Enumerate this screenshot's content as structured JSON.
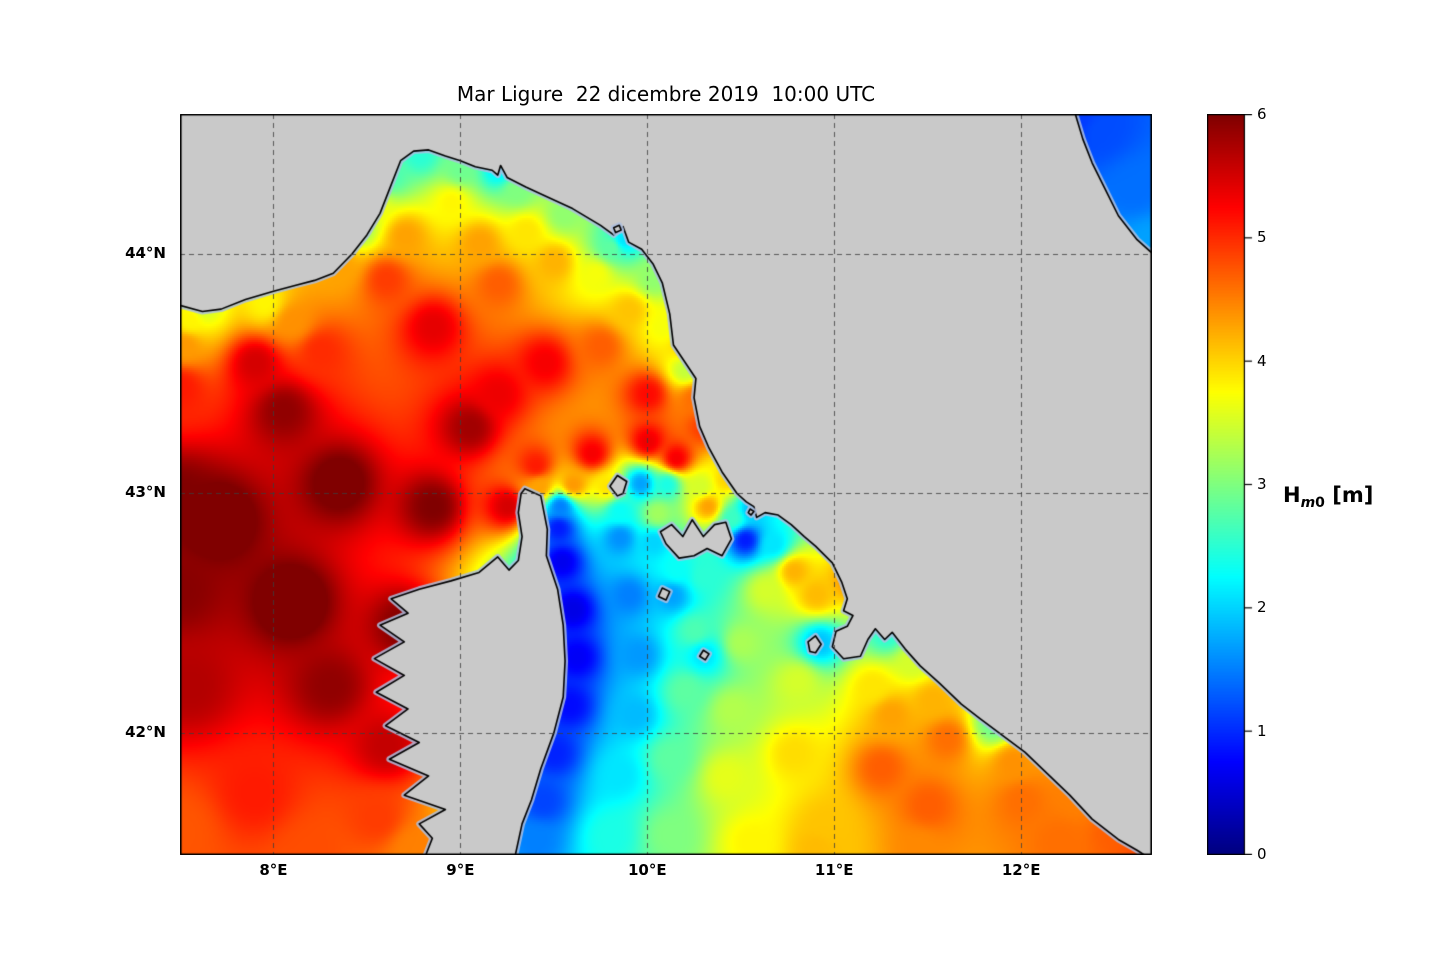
{
  "title": "Mar Ligure  22 dicembre 2019  10:00 UTC",
  "axes": {
    "lon_min": 7.5,
    "lon_max": 12.7,
    "lat_min": 41.49,
    "lat_max": 44.585,
    "x_ticks": [
      {
        "label": "8°E",
        "lon": 8
      },
      {
        "label": "9°E",
        "lon": 9
      },
      {
        "label": "10°E",
        "lon": 10
      },
      {
        "label": "11°E",
        "lon": 11
      },
      {
        "label": "12°E",
        "lon": 12
      }
    ],
    "y_ticks": [
      {
        "label": "44°N",
        "lat": 44
      },
      {
        "label": "43°N",
        "lat": 43
      },
      {
        "label": "42°N",
        "lat": 42
      }
    ]
  },
  "colorbar": {
    "min": 0,
    "max": 6,
    "ticks": [
      {
        "label": "6",
        "value": 6
      },
      {
        "label": "5",
        "value": 5
      },
      {
        "label": "4",
        "value": 4
      },
      {
        "label": "3",
        "value": 3
      },
      {
        "label": "2",
        "value": 2
      },
      {
        "label": "1",
        "value": 1
      },
      {
        "label": "0",
        "value": 0
      }
    ],
    "label_prefix": "H",
    "label_sub_italic": "m",
    "label_sub_normal": "0",
    "label_suffix": " [m]"
  },
  "colors": {
    "land": "#c9c9c9",
    "coast": "#000000",
    "nodata_halo": "#aebfe0",
    "grid": "#3c3c3c",
    "frame": "#000000",
    "background": "#ffffff"
  },
  "chart_data": {
    "type": "heatmap",
    "title": "Mar Ligure  22 dicembre 2019  10:00 UTC",
    "field": "significant wave height Hm0",
    "units": "m",
    "colormap": "jet",
    "value_range": [
      0,
      6
    ],
    "lon_range": [
      7.5,
      12.7
    ],
    "lat_range": [
      41.49,
      44.585
    ],
    "grid": "dashed",
    "points": [
      [
        7.7,
        42.9,
        6.3
      ],
      [
        8.1,
        42.55,
        6.3
      ],
      [
        8.35,
        43.05,
        6.15
      ],
      [
        8.7,
        42.45,
        6.0
      ],
      [
        8.85,
        42.95,
        6.0
      ],
      [
        8.05,
        43.35,
        5.9
      ],
      [
        9.05,
        43.28,
        5.8
      ],
      [
        7.55,
        42.2,
        5.7
      ],
      [
        8.6,
        41.95,
        5.6
      ],
      [
        9.25,
        42.95,
        5.5
      ],
      [
        9.2,
        43.42,
        5.35
      ],
      [
        7.5,
        43.0,
        6.0
      ],
      [
        8.3,
        42.2,
        5.9
      ],
      [
        9.0,
        42.2,
        5.3
      ],
      [
        7.9,
        41.75,
        5.1
      ],
      [
        8.55,
        41.65,
        4.9
      ],
      [
        7.5,
        41.6,
        4.75
      ],
      [
        8.2,
        41.5,
        4.8
      ],
      [
        8.75,
        41.52,
        4.5
      ],
      [
        7.5,
        42.6,
        5.95
      ],
      [
        7.5,
        43.45,
        5.1
      ],
      [
        7.52,
        43.62,
        4.35
      ],
      [
        7.55,
        43.73,
        3.8
      ],
      [
        7.62,
        43.78,
        3.5
      ],
      [
        7.9,
        43.55,
        5.5
      ],
      [
        7.95,
        43.8,
        3.8
      ],
      [
        8.1,
        43.72,
        4.4
      ],
      [
        8.25,
        43.6,
        5.0
      ],
      [
        8.45,
        44.12,
        3.1
      ],
      [
        8.62,
        44.33,
        2.7
      ],
      [
        8.78,
        44.42,
        2.5
      ],
      [
        9.0,
        44.36,
        2.9
      ],
      [
        9.2,
        44.355,
        2.2
      ],
      [
        9.3,
        44.27,
        3.0
      ],
      [
        9.55,
        44.17,
        3.1
      ],
      [
        9.8,
        44.03,
        2.8
      ],
      [
        9.87,
        44.065,
        2.1
      ],
      [
        10.03,
        43.9,
        3.1
      ],
      [
        10.2,
        43.52,
        3.4
      ],
      [
        8.52,
        44.2,
        3.7
      ],
      [
        8.95,
        44.22,
        3.8
      ],
      [
        9.35,
        44.1,
        3.9
      ],
      [
        9.72,
        43.92,
        3.7
      ],
      [
        10.08,
        43.7,
        3.7
      ],
      [
        8.35,
        43.95,
        4.3
      ],
      [
        8.7,
        44.08,
        4.3
      ],
      [
        9.1,
        44.05,
        4.3
      ],
      [
        9.5,
        43.97,
        4.2
      ],
      [
        9.9,
        43.77,
        4.1
      ],
      [
        10.2,
        43.62,
        4.0
      ],
      [
        8.6,
        43.9,
        4.9
      ],
      [
        9.2,
        43.88,
        4.7
      ],
      [
        9.75,
        43.62,
        4.7
      ],
      [
        10.25,
        43.4,
        4.6
      ],
      [
        8.85,
        43.7,
        5.4
      ],
      [
        9.45,
        43.55,
        5.3
      ],
      [
        10.0,
        43.42,
        5.2
      ],
      [
        10.3,
        43.28,
        4.9
      ],
      [
        10.15,
        43.15,
        5.3
      ],
      [
        9.4,
        43.12,
        5.1
      ],
      [
        9.7,
        43.17,
        5.3
      ],
      [
        10.0,
        43.22,
        5.35
      ],
      [
        9.42,
        43.03,
        4.3
      ],
      [
        9.6,
        43.04,
        4.35
      ],
      [
        9.78,
        43.03,
        3.9
      ],
      [
        9.96,
        43.045,
        1.7
      ],
      [
        10.1,
        43.04,
        2.4
      ],
      [
        10.28,
        43.03,
        3.5
      ],
      [
        10.42,
        43.06,
        4.0
      ],
      [
        9.85,
        42.93,
        2.3
      ],
      [
        10.05,
        42.92,
        3.2
      ],
      [
        10.32,
        42.95,
        4.3
      ],
      [
        10.55,
        42.94,
        1.9
      ],
      [
        10.45,
        42.9,
        2.6
      ],
      [
        9.53,
        42.95,
        1.5
      ],
      [
        9.52,
        42.86,
        0.9
      ],
      [
        9.54,
        42.72,
        0.65
      ],
      [
        9.6,
        42.52,
        0.6
      ],
      [
        9.62,
        42.32,
        0.7
      ],
      [
        9.58,
        42.12,
        0.8
      ],
      [
        9.5,
        41.92,
        0.95
      ],
      [
        9.44,
        41.72,
        1.15
      ],
      [
        9.4,
        41.55,
        1.5
      ],
      [
        9.85,
        42.82,
        1.6
      ],
      [
        9.9,
        42.58,
        1.5
      ],
      [
        9.95,
        42.33,
        1.65
      ],
      [
        9.93,
        42.08,
        1.85
      ],
      [
        9.85,
        41.83,
        2.1
      ],
      [
        9.8,
        41.58,
        2.4
      ],
      [
        10.15,
        42.68,
        2.3
      ],
      [
        10.25,
        42.43,
        2.7
      ],
      [
        10.2,
        42.18,
        2.8
      ],
      [
        10.12,
        41.9,
        2.8
      ],
      [
        10.12,
        41.58,
        3.0
      ],
      [
        10.5,
        42.38,
        3.25
      ],
      [
        10.45,
        42.1,
        3.3
      ],
      [
        10.42,
        41.82,
        3.6
      ],
      [
        10.55,
        41.55,
        3.8
      ],
      [
        10.8,
        42.22,
        3.5
      ],
      [
        10.78,
        41.92,
        3.95
      ],
      [
        10.95,
        41.62,
        4.1
      ],
      [
        10.03,
        42.8,
        2.0
      ],
      [
        10.52,
        42.81,
        0.9
      ],
      [
        10.67,
        42.79,
        2.1
      ],
      [
        10.3,
        42.66,
        2.5
      ],
      [
        10.13,
        42.58,
        1.7
      ],
      [
        10.3,
        42.33,
        2.1
      ],
      [
        10.63,
        42.6,
        3.5
      ],
      [
        10.78,
        42.68,
        4.2
      ],
      [
        10.9,
        42.58,
        4.15
      ],
      [
        11.08,
        42.64,
        4.35
      ],
      [
        10.92,
        42.38,
        1.9
      ],
      [
        11.28,
        42.42,
        2.5
      ],
      [
        11.42,
        42.3,
        3.5
      ],
      [
        11.2,
        42.2,
        3.9
      ],
      [
        11.3,
        42.08,
        4.3
      ],
      [
        11.25,
        41.86,
        4.7
      ],
      [
        11.6,
        41.98,
        4.6
      ],
      [
        11.52,
        42.14,
        4.2
      ],
      [
        11.85,
        42.04,
        2.9
      ],
      [
        11.95,
        41.88,
        4.4
      ],
      [
        12.0,
        41.72,
        4.6
      ],
      [
        12.3,
        41.73,
        4.5
      ],
      [
        12.5,
        41.6,
        4.7
      ],
      [
        12.65,
        41.52,
        4.8
      ],
      [
        11.45,
        41.52,
        4.45
      ],
      [
        10.9,
        41.52,
        4.15
      ],
      [
        12.2,
        41.55,
        4.6
      ],
      [
        11.5,
        41.7,
        4.7
      ],
      [
        12.42,
        44.52,
        1.2
      ],
      [
        12.6,
        44.28,
        1.4
      ],
      [
        12.69,
        44.04,
        1.7
      ],
      [
        12.3,
        44.57,
        1.1
      ]
    ],
    "land": {
      "mainland": [
        [
          7.48,
          43.79
        ],
        [
          7.62,
          43.76
        ],
        [
          7.72,
          43.77
        ],
        [
          7.85,
          43.81
        ],
        [
          8.0,
          43.845
        ],
        [
          8.12,
          43.87
        ],
        [
          8.22,
          43.89
        ],
        [
          8.32,
          43.92
        ],
        [
          8.42,
          44.0
        ],
        [
          8.5,
          44.08
        ],
        [
          8.57,
          44.17
        ],
        [
          8.63,
          44.29
        ],
        [
          8.68,
          44.39
        ],
        [
          8.75,
          44.43
        ],
        [
          8.83,
          44.435
        ],
        [
          8.92,
          44.41
        ],
        [
          9.0,
          44.39
        ],
        [
          9.08,
          44.365
        ],
        [
          9.17,
          44.35
        ],
        [
          9.2,
          44.33
        ],
        [
          9.215,
          44.37
        ],
        [
          9.25,
          44.32
        ],
        [
          9.35,
          44.28
        ],
        [
          9.46,
          44.24
        ],
        [
          9.6,
          44.19
        ],
        [
          9.75,
          44.12
        ],
        [
          9.82,
          44.08
        ],
        [
          9.87,
          44.115
        ],
        [
          9.9,
          44.05
        ],
        [
          9.97,
          44.02
        ],
        [
          10.03,
          43.96
        ],
        [
          10.08,
          43.88
        ],
        [
          10.12,
          43.75
        ],
        [
          10.14,
          43.62
        ],
        [
          10.2,
          43.55
        ],
        [
          10.26,
          43.48
        ],
        [
          10.25,
          43.4
        ],
        [
          10.28,
          43.28
        ],
        [
          10.33,
          43.19
        ],
        [
          10.4,
          43.09
        ],
        [
          10.48,
          43.0
        ],
        [
          10.53,
          42.965
        ],
        [
          10.57,
          42.945
        ],
        [
          10.585,
          42.9
        ],
        [
          10.63,
          42.92
        ],
        [
          10.7,
          42.91
        ],
        [
          10.77,
          42.87
        ],
        [
          10.84,
          42.82
        ],
        [
          10.9,
          42.78
        ],
        [
          10.99,
          42.71
        ],
        [
          11.04,
          42.63
        ],
        [
          11.07,
          42.56
        ],
        [
          11.05,
          42.51
        ],
        [
          11.1,
          42.49
        ],
        [
          11.07,
          42.445
        ],
        [
          11.01,
          42.425
        ],
        [
          10.99,
          42.36
        ],
        [
          11.05,
          42.31
        ],
        [
          11.14,
          42.32
        ],
        [
          11.18,
          42.39
        ],
        [
          11.22,
          42.435
        ],
        [
          11.27,
          42.39
        ],
        [
          11.31,
          42.42
        ],
        [
          11.38,
          42.35
        ],
        [
          11.46,
          42.28
        ],
        [
          11.56,
          42.21
        ],
        [
          11.68,
          42.12
        ],
        [
          11.78,
          42.06
        ],
        [
          11.9,
          41.99
        ],
        [
          12.02,
          41.92
        ],
        [
          12.14,
          41.83
        ],
        [
          12.26,
          41.74
        ],
        [
          12.38,
          41.64
        ],
        [
          12.52,
          41.555
        ],
        [
          12.62,
          41.51
        ],
        [
          12.72,
          41.46
        ],
        [
          12.72,
          43.99
        ],
        [
          12.62,
          44.06
        ],
        [
          12.52,
          44.16
        ],
        [
          12.45,
          44.27
        ],
        [
          12.38,
          44.38
        ],
        [
          12.33,
          44.48
        ],
        [
          12.28,
          44.61
        ],
        [
          7.48,
          44.61
        ]
      ],
      "corsica": [
        [
          9.345,
          43.02
        ],
        [
          9.43,
          42.99
        ],
        [
          9.465,
          42.85
        ],
        [
          9.46,
          42.74
        ],
        [
          9.52,
          42.6
        ],
        [
          9.55,
          42.45
        ],
        [
          9.56,
          42.3
        ],
        [
          9.55,
          42.15
        ],
        [
          9.5,
          42.0
        ],
        [
          9.43,
          41.85
        ],
        [
          9.38,
          41.72
        ],
        [
          9.33,
          41.62
        ],
        [
          9.28,
          41.44
        ],
        [
          8.79,
          41.44
        ],
        [
          8.85,
          41.56
        ],
        [
          8.78,
          41.62
        ],
        [
          8.92,
          41.68
        ],
        [
          8.7,
          41.74
        ],
        [
          8.83,
          41.82
        ],
        [
          8.62,
          41.89
        ],
        [
          8.78,
          41.96
        ],
        [
          8.6,
          42.03
        ],
        [
          8.72,
          42.1
        ],
        [
          8.55,
          42.17
        ],
        [
          8.7,
          42.24
        ],
        [
          8.54,
          42.31
        ],
        [
          8.7,
          42.38
        ],
        [
          8.57,
          42.45
        ],
        [
          8.72,
          42.5
        ],
        [
          8.63,
          42.56
        ],
        [
          8.78,
          42.6
        ],
        [
          8.95,
          42.635
        ],
        [
          9.1,
          42.67
        ],
        [
          9.2,
          42.735
        ],
        [
          9.26,
          42.68
        ],
        [
          9.31,
          42.72
        ],
        [
          9.33,
          42.82
        ],
        [
          9.31,
          42.92
        ],
        [
          9.325,
          43.0
        ]
      ],
      "islands": [
        [
          [
            10.1,
            42.79
          ],
          [
            10.07,
            42.84
          ],
          [
            10.13,
            42.87
          ],
          [
            10.19,
            42.82
          ],
          [
            10.24,
            42.89
          ],
          [
            10.3,
            42.82
          ],
          [
            10.36,
            42.87
          ],
          [
            10.42,
            42.88
          ],
          [
            10.45,
            42.81
          ],
          [
            10.4,
            42.74
          ],
          [
            10.32,
            42.77
          ],
          [
            10.25,
            42.74
          ],
          [
            10.17,
            42.73
          ]
        ],
        [
          [
            9.84,
            42.99
          ],
          [
            9.8,
            43.03
          ],
          [
            9.84,
            43.075
          ],
          [
            9.89,
            43.05
          ],
          [
            9.87,
            43.0
          ]
        ],
        [
          [
            10.06,
            42.57
          ],
          [
            10.08,
            42.605
          ],
          [
            10.12,
            42.59
          ],
          [
            10.1,
            42.555
          ]
        ],
        [
          [
            10.28,
            42.32
          ],
          [
            10.3,
            42.345
          ],
          [
            10.33,
            42.33
          ],
          [
            10.31,
            42.305
          ]
        ],
        [
          [
            10.87,
            42.34
          ],
          [
            10.86,
            42.38
          ],
          [
            10.9,
            42.405
          ],
          [
            10.93,
            42.37
          ],
          [
            10.9,
            42.335
          ]
        ],
        [
          [
            9.83,
            44.09
          ],
          [
            9.82,
            44.11
          ],
          [
            9.85,
            44.12
          ],
          [
            9.86,
            44.1
          ]
        ],
        [
          [
            10.54,
            42.92
          ],
          [
            10.55,
            42.935
          ],
          [
            10.57,
            42.925
          ],
          [
            10.555,
            42.91
          ]
        ]
      ]
    }
  }
}
